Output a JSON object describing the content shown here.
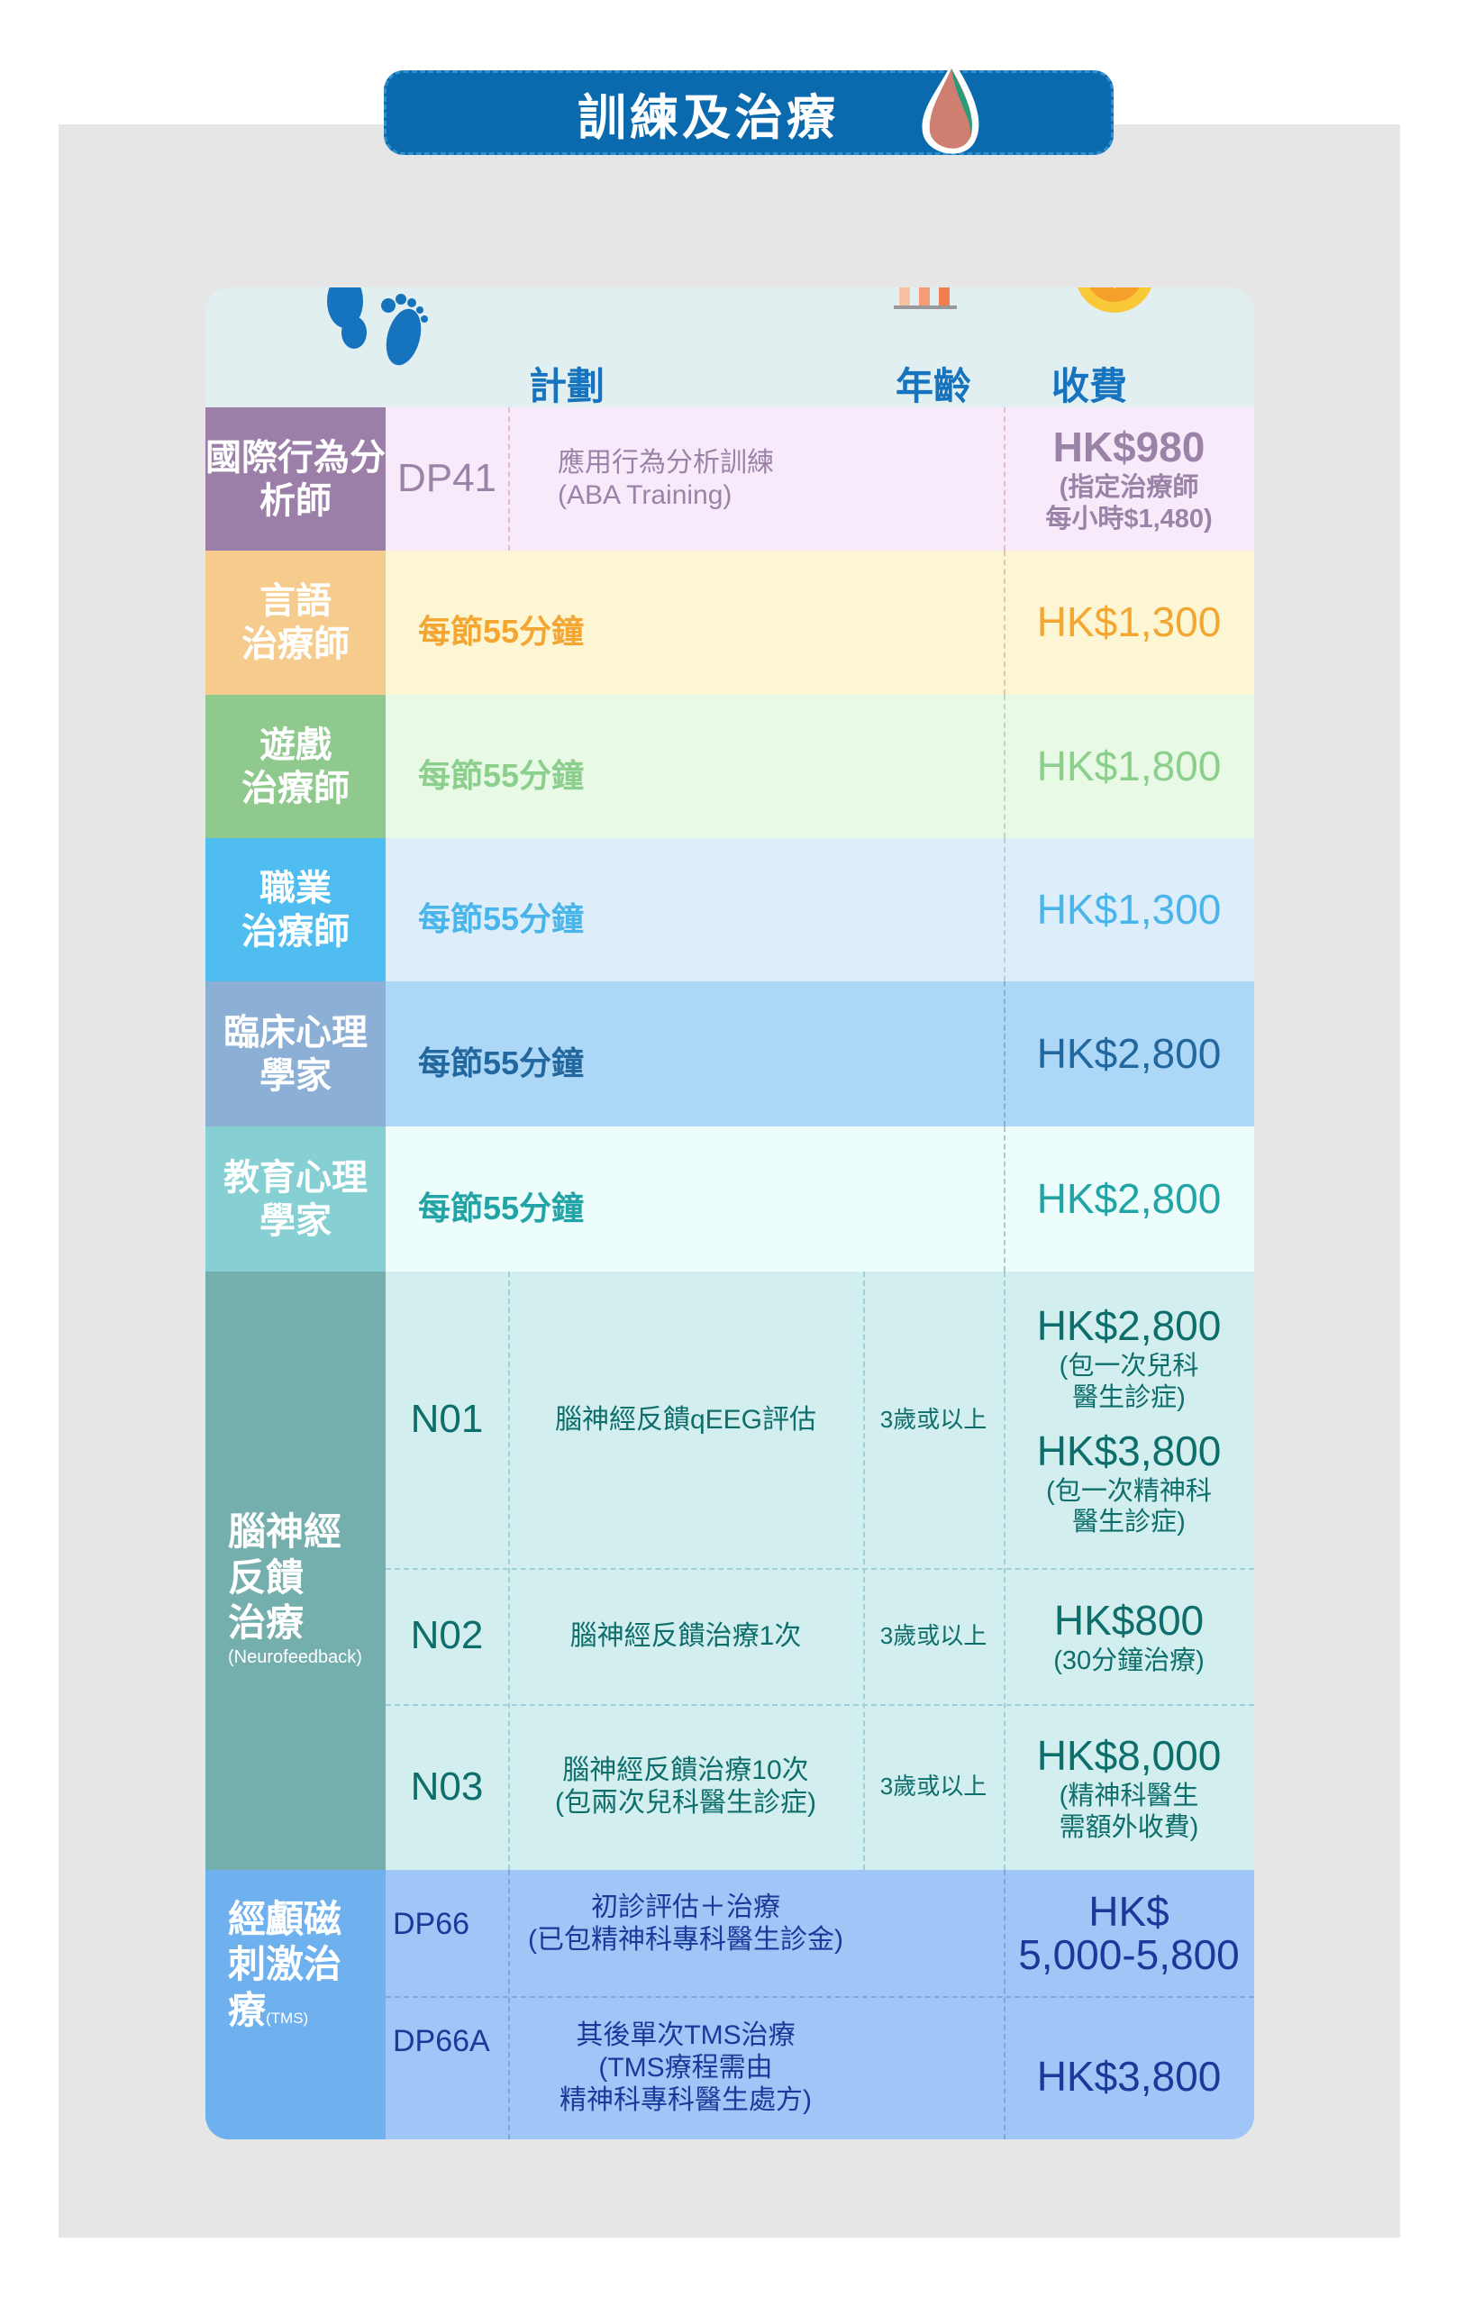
{
  "title": "訓練及治療",
  "header": {
    "plan": "計劃",
    "age": "年齡",
    "fee": "收費"
  },
  "icons": {
    "banner": "leaf-drop-icon",
    "plan": "footprints-icon",
    "age": "growth-chart-icon",
    "fee": "dollar-coin-icon"
  },
  "rows": [
    {
      "label": "國際行為分析師",
      "code": "DP41",
      "desc": "應用行為分析訓練\n(ABA Training)",
      "fee": "HK$980",
      "fee_note": "(指定治療師\n每小時$1,480)",
      "colors": {
        "label": "#9b7fa8",
        "bg": "#f7ebfb",
        "text": "#9b83a8"
      }
    },
    {
      "label": "言語\n治療師",
      "session": "每節55分鐘",
      "fee": "HK$1,300",
      "colors": {
        "label": "#f6cc8e",
        "bg": "#fcf6d4",
        "text": "#f4a632"
      }
    },
    {
      "label": "遊戲\n治療師",
      "session": "每節55分鐘",
      "fee": "HK$1,800",
      "colors": {
        "label": "#8fc98e",
        "bg": "#e8f9e5",
        "text": "#8ccf8d"
      }
    },
    {
      "label": "職業\n治療師",
      "session": "每節55分鐘",
      "fee": "HK$1,300",
      "colors": {
        "label": "#4fbdef",
        "bg": "#ddedf9",
        "text": "#4ab5ea"
      }
    },
    {
      "label": "臨床心理\n學家",
      "session": "每節55分鐘",
      "fee": "HK$2,800",
      "colors": {
        "label": "#8bafd5",
        "bg": "#acd7f7",
        "text": "#23679f"
      }
    },
    {
      "label": "教育心理\n學家",
      "session": "每節55分鐘",
      "fee": "HK$2,800",
      "colors": {
        "label": "#86cfd3",
        "bg": "#ecfdfb",
        "text": "#22a3a5"
      }
    }
  ],
  "neuro": {
    "label": "腦神經\n反饋\n治療",
    "label_en": "(Neurofeedback)",
    "colors": {
      "label": "#74afad",
      "bg": "#d2eeee",
      "text": "#0e6e6c"
    },
    "items": [
      {
        "code": "N01",
        "desc": "腦神經反饋qEEG評估",
        "age": "3歲或以上",
        "fee": "HK$2,800",
        "fee_note": "(包一次兒科\n醫生診症)",
        "fee2": "HK$3,800",
        "fee2_note": "(包一次精神科\n醫生診症)"
      },
      {
        "code": "N02",
        "desc": "腦神經反饋治療1次",
        "age": "3歲或以上",
        "fee": "HK$800",
        "fee_note": "(30分鐘治療)"
      },
      {
        "code": "N03",
        "desc": "腦神經反饋治療10次\n(包兩次兒科醫生診症)",
        "age": "3歲或以上",
        "fee": "HK$8,000",
        "fee_note": "(精神科醫生\n需額外收費)"
      }
    ]
  },
  "tms": {
    "label": "經顱磁\n刺激治\n療",
    "label_en": "(TMS)",
    "colors": {
      "label": "#6fb1ee",
      "bg": "#a0c6f8",
      "text": "#1a3a9a"
    },
    "items": [
      {
        "code": "DP66",
        "desc": "初診評估＋治療\n(已包精神科專科醫生診金)",
        "fee": "HK$\n5,000-5,800"
      },
      {
        "code": "DP66A",
        "desc": "其後單次TMS治療\n(TMS療程需由\n精神科專科醫生處方)",
        "fee": "HK$3,800"
      }
    ]
  }
}
